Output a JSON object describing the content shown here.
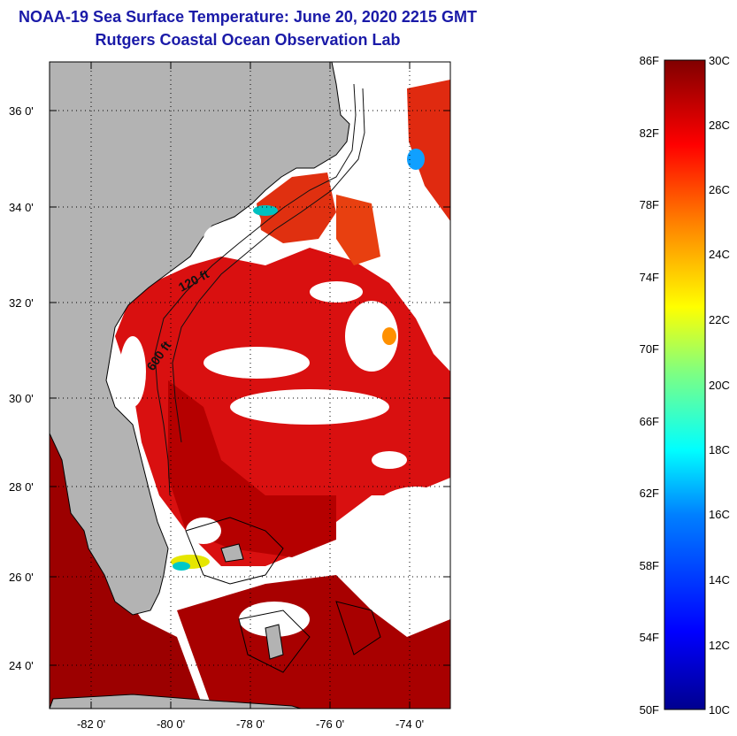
{
  "title": "NOAA-19 Sea Surface Temperature:  June 20, 2020 2215 GMT",
  "subtitle": "Rutgers Coastal Ocean Observation Lab",
  "map": {
    "lat_ticks": [
      "36 0'",
      "34 0'",
      "32 0'",
      "30 0'",
      "28 0'",
      "26 0'",
      "24 0'"
    ],
    "lon_ticks": [
      "-82 0'",
      "-80 0'",
      "-78 0'",
      "-76 0'",
      "-74 0'"
    ],
    "contour_labels": [
      "120 ft",
      "600 ft"
    ],
    "colors": {
      "land": "#b3b3b3",
      "cloud": "#ffffff",
      "sst_hot": "#a40000",
      "sst_warm": "#e01010"
    }
  },
  "colorbar": {
    "f_labels": [
      "86F",
      "82F",
      "78F",
      "74F",
      "70F",
      "66F",
      "62F",
      "58F",
      "54F",
      "50F"
    ],
    "c_labels": [
      "30C",
      "28C",
      "26C",
      "24C",
      "22C",
      "20C",
      "18C",
      "16C",
      "14C",
      "12C",
      "10C"
    ],
    "colors": [
      "#00008f",
      "#0000ff",
      "#0080ff",
      "#00ffff",
      "#80ff80",
      "#ffff00",
      "#ff8000",
      "#ff0000",
      "#800000"
    ]
  }
}
